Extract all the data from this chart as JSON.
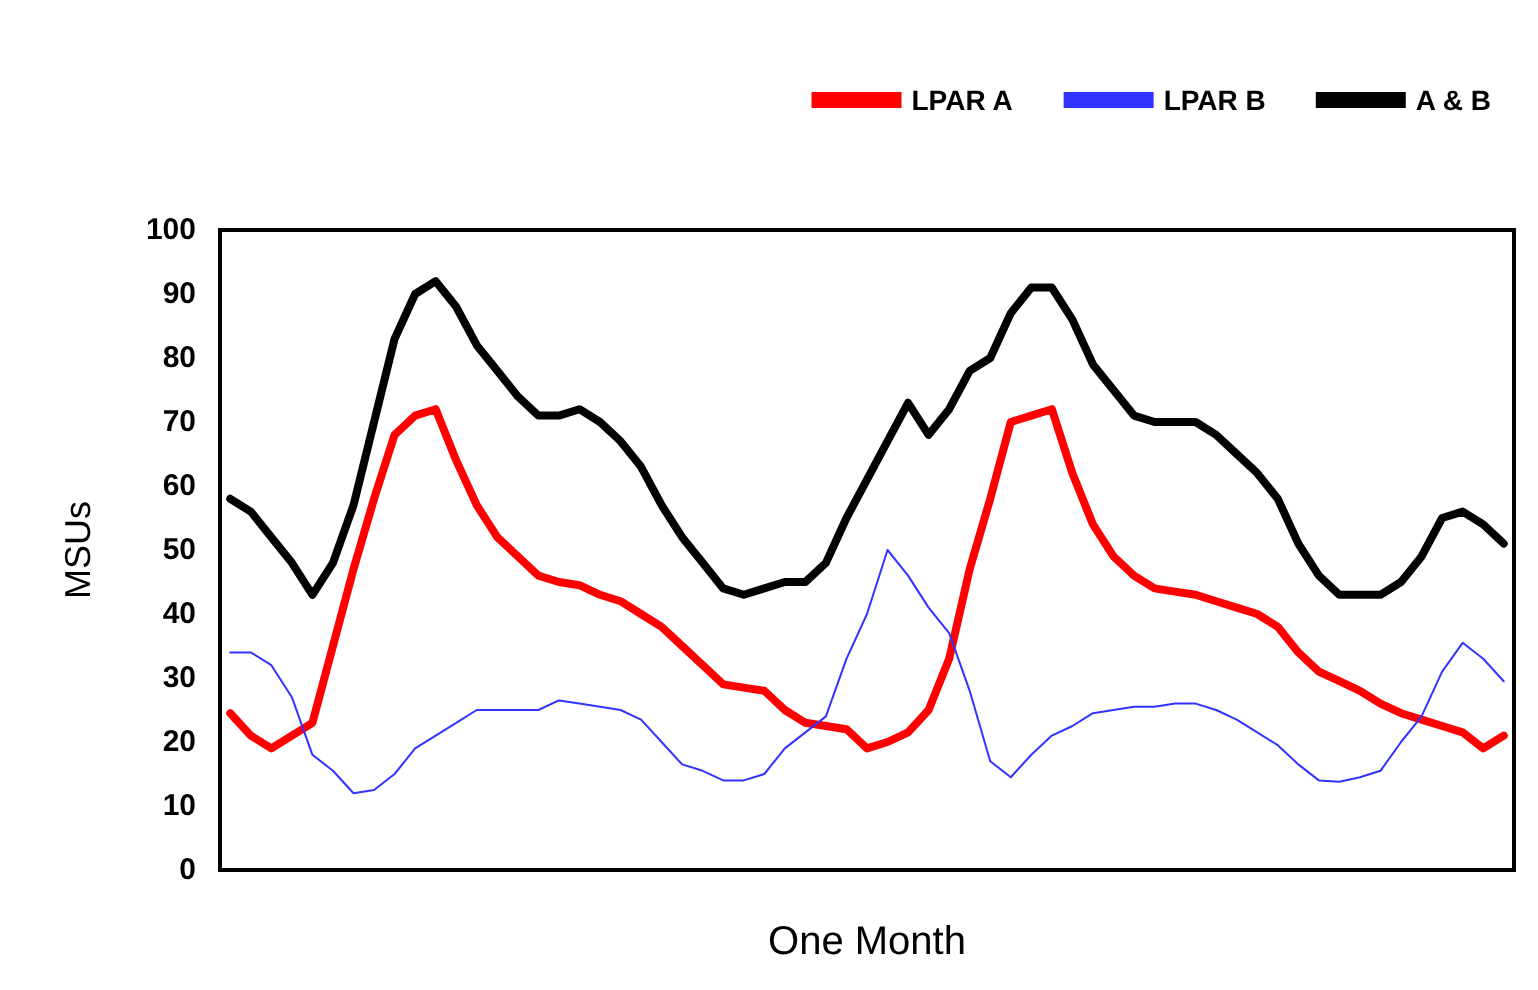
{
  "chart_data": {
    "type": "line",
    "xlabel": "One Month",
    "ylabel": "MSUs",
    "categories": [
      null,
      null,
      null,
      null,
      null,
      null,
      null,
      null,
      null,
      null,
      null,
      null,
      null,
      null,
      null,
      null,
      null,
      null,
      null,
      null,
      null,
      null,
      null,
      null,
      null,
      null,
      null,
      null,
      null,
      null,
      null,
      null,
      null,
      null,
      null,
      null,
      null,
      null,
      null,
      null,
      null,
      null,
      null,
      null,
      null,
      null,
      null,
      null,
      null,
      null,
      null,
      null,
      null,
      null,
      null,
      null,
      null,
      null,
      null,
      null,
      null,
      null,
      null
    ],
    "series": [
      {
        "name": "LPAR A",
        "color": "#ff0000",
        "values": [
          24.5,
          21,
          19,
          21,
          23,
          35,
          47,
          58,
          68,
          71,
          72,
          64,
          57,
          52,
          49,
          46,
          45,
          44.5,
          43,
          42,
          40,
          38,
          35,
          32,
          29,
          28.5,
          28,
          25,
          23,
          22.5,
          22,
          19,
          20,
          21.5,
          25,
          33,
          47,
          58,
          70,
          71,
          72,
          62,
          54,
          49,
          46,
          44,
          43.5,
          43,
          42,
          41,
          40,
          38,
          34,
          31,
          29.5,
          28,
          26,
          24.5,
          23.5,
          22.5,
          21.5,
          19,
          21
        ]
      },
      {
        "name": "LPAR B",
        "color": "#3333ff",
        "values": [
          34,
          34,
          32,
          27,
          18,
          15.5,
          12,
          12.5,
          15,
          19,
          21,
          23,
          25,
          25,
          25,
          25,
          26.5,
          26,
          25.5,
          25,
          23.5,
          20,
          16.5,
          15.5,
          14,
          14,
          15,
          19,
          21.5,
          24,
          33,
          40,
          50,
          46,
          41,
          37,
          28,
          17,
          14.5,
          18,
          21,
          22.5,
          24.5,
          25,
          25.5,
          25.5,
          26,
          26,
          25,
          23.5,
          21.5,
          19.5,
          16.5,
          14,
          13.8,
          14.5,
          15.5,
          20,
          24,
          31,
          35.5,
          33,
          29.5
        ]
      },
      {
        "name": "A & B",
        "color": "#000000",
        "values": [
          58,
          56,
          52,
          48,
          43,
          48,
          57,
          70,
          83,
          90,
          92,
          88,
          82,
          78,
          74,
          71,
          71,
          72,
          70,
          67,
          63,
          57,
          52,
          48,
          44,
          43,
          44,
          45,
          45,
          48,
          55,
          61,
          67,
          73,
          68,
          72,
          78,
          80,
          87,
          91,
          91,
          86,
          79,
          75,
          71,
          70,
          70,
          70,
          68,
          65,
          62,
          58,
          51,
          46,
          43,
          43,
          43,
          45,
          49,
          55,
          56,
          54,
          51
        ]
      }
    ],
    "ylim": [
      0,
      100
    ],
    "yticks": [
      0,
      10,
      20,
      30,
      40,
      50,
      60,
      70,
      80,
      90,
      100
    ],
    "grid": false,
    "legend": "top right",
    "marker": "none",
    "line_style": "solid"
  }
}
